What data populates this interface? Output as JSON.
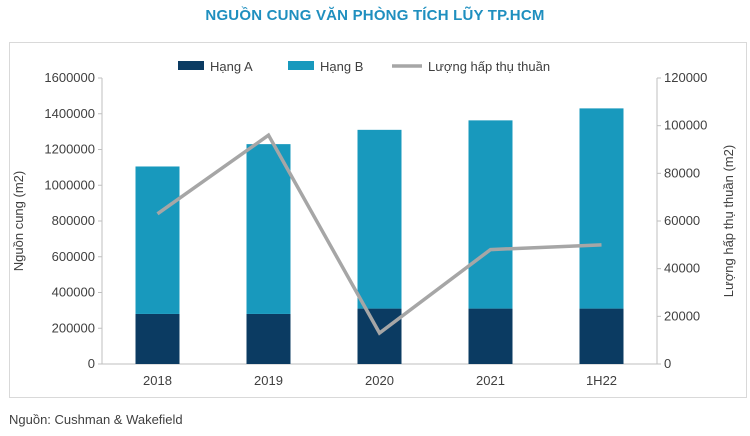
{
  "title": "NGUỒN CUNG VĂN PHÒNG TÍCH LŨY TP.HCM",
  "source": "Nguồn: Cushman & Wakefield",
  "chart_data": {
    "type": "bar",
    "stacked": true,
    "categories": [
      "2018",
      "2019",
      "2020",
      "2021",
      "1H22"
    ],
    "series": [
      {
        "name": "Hạng A",
        "type": "bar",
        "axis": "left",
        "color": "#0b3b62",
        "values": [
          280000,
          280000,
          310000,
          310000,
          310000
        ]
      },
      {
        "name": "Hạng B",
        "type": "bar",
        "axis": "left",
        "color": "#1899bd",
        "values": [
          825000,
          950000,
          1000000,
          1053000,
          1120000
        ]
      },
      {
        "name": "Lượng hấp thụ thuần",
        "type": "line",
        "axis": "right",
        "color": "#a6a6a6",
        "values": [
          63000,
          96000,
          13000,
          48000,
          50000
        ]
      }
    ],
    "ylabel": "Nguồn cung (m2)",
    "y2label": "Lượng hấp thụ thuần (m2)",
    "ylim": [
      0,
      1600000
    ],
    "y2lim": [
      0,
      120000
    ],
    "yticks": [
      "0",
      "200000",
      "400000",
      "600000",
      "800000",
      "1000000",
      "1200000",
      "1400000",
      "1600000"
    ],
    "y2ticks": [
      "0",
      "20000",
      "40000",
      "60000",
      "80000",
      "100000",
      "120000"
    ],
    "legend": "top",
    "grid": false
  }
}
